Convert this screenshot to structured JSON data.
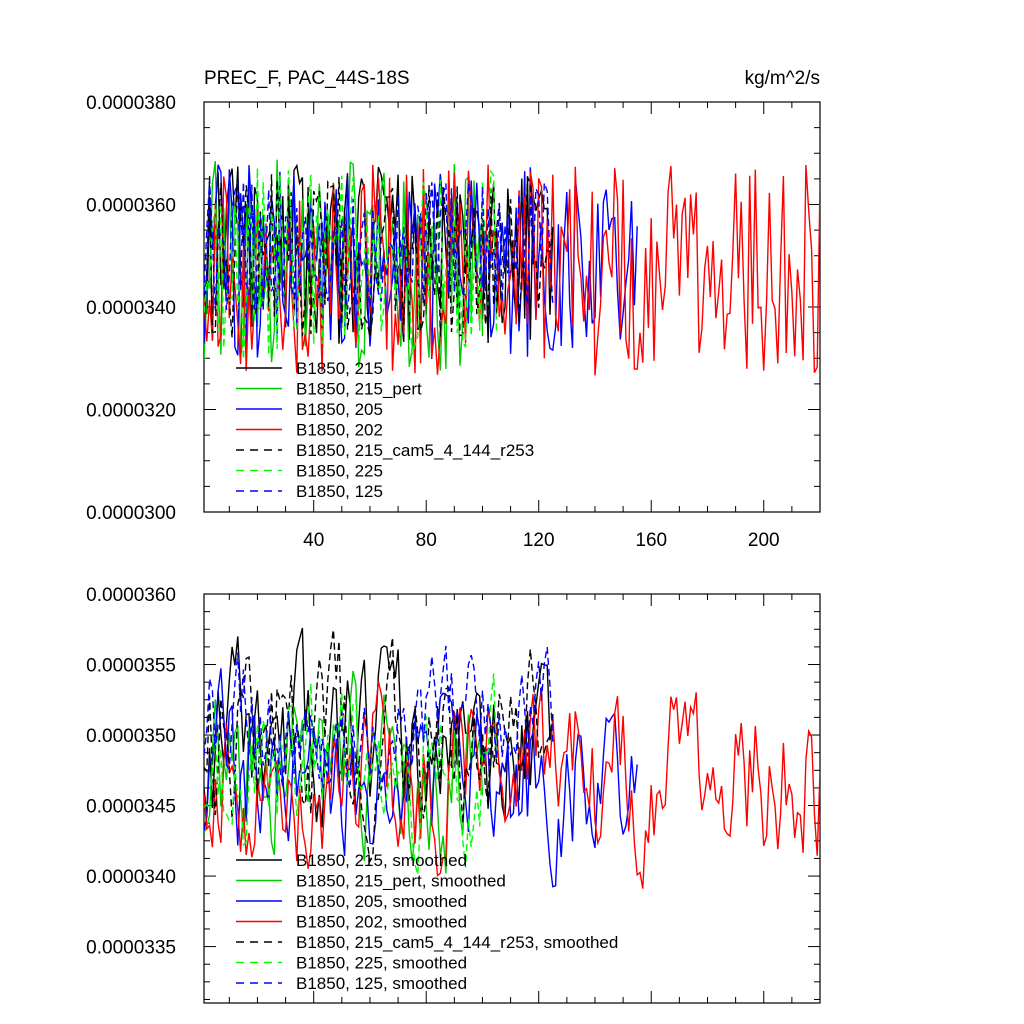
{
  "chart_data": [
    {
      "type": "line",
      "title": "PREC_F, PAC_44S-18S",
      "units": "kg/m^2/s",
      "xlim": [
        1,
        220
      ],
      "ylim": [
        3e-05,
        3.8e-05
      ],
      "xticks": [
        40,
        80,
        120,
        160,
        200
      ],
      "xtick_labels": [
        "40",
        "80",
        "120",
        "160",
        "200"
      ],
      "yticks": [
        3e-05,
        3.2e-05,
        3.4e-05,
        3.6e-05,
        3.8e-05
      ],
      "ytick_labels": [
        "0.0000300",
        "0.0000320",
        "0.0000340",
        "0.0000360",
        "0.0000380"
      ],
      "legend_position": "bottom-left",
      "series": [
        {
          "name": "B1850, 215",
          "color": "#000000",
          "dash": "solid",
          "length": 125,
          "seed": 11,
          "mean": 3.5e-05,
          "amp": 1.1e-06
        },
        {
          "name": "B1850, 215_pert",
          "color": "#00cc00",
          "dash": "solid",
          "length": 100,
          "seed": 23,
          "mean": 3.48e-05,
          "amp": 1.3e-06
        },
        {
          "name": "B1850, 205",
          "color": "#0000ff",
          "dash": "solid",
          "length": 155,
          "seed": 37,
          "mean": 3.49e-05,
          "amp": 1.2e-06
        },
        {
          "name": "B1850, 202",
          "color": "#ff0000",
          "dash": "solid",
          "length": 220,
          "seed": 41,
          "mean": 3.47e-05,
          "amp": 1.3e-06
        },
        {
          "name": "B1850, 215_cam5_4_144_r253",
          "color": "#000000",
          "dash": "dashed",
          "length": 125,
          "seed": 53,
          "mean": 3.5e-05,
          "amp": 1e-06
        },
        {
          "name": "B1850, 225",
          "color": "#00ff00",
          "dash": "dashed",
          "length": 105,
          "seed": 67,
          "mean": 3.48e-05,
          "amp": 1.2e-06
        },
        {
          "name": "B1850, 125",
          "color": "#0000ff",
          "dash": "dashed",
          "length": 125,
          "seed": 79,
          "mean": 3.52e-05,
          "amp": 8e-07
        }
      ]
    },
    {
      "type": "line",
      "title": "",
      "units": "",
      "xlim": [
        1,
        220
      ],
      "ylim": [
        3.31e-05,
        3.6e-05
      ],
      "xticks": [
        40,
        80,
        120,
        160,
        200
      ],
      "xtick_labels": [],
      "yticks": [
        3.35e-05,
        3.4e-05,
        3.45e-05,
        3.5e-05,
        3.55e-05,
        3.6e-05
      ],
      "ytick_labels": [
        "0.0000335",
        "0.0000340",
        "0.0000345",
        "0.0000350",
        "0.0000355",
        "0.0000360"
      ],
      "legend_position": "bottom-left",
      "series": [
        {
          "name": "B1850, 215, smoothed",
          "color": "#000000",
          "dash": "solid",
          "length": 125,
          "seed": 11,
          "mean": 3.49e-05,
          "amp": 4e-07
        },
        {
          "name": "B1850, 215_pert, smoothed",
          "color": "#00cc00",
          "dash": "solid",
          "length": 100,
          "seed": 23,
          "mean": 3.47e-05,
          "amp": 4e-07
        },
        {
          "name": "B1850, 205, smoothed",
          "color": "#0000ff",
          "dash": "solid",
          "length": 155,
          "seed": 37,
          "mean": 3.47e-05,
          "amp": 4e-07
        },
        {
          "name": "B1850, 202, smoothed",
          "color": "#ff0000",
          "dash": "solid",
          "length": 220,
          "seed": 41,
          "mean": 3.47e-05,
          "amp": 4e-07
        },
        {
          "name": "B1850, 215_cam5_4_144_r253, smoothed",
          "color": "#000000",
          "dash": "dashed",
          "length": 125,
          "seed": 53,
          "mean": 3.5e-05,
          "amp": 4e-07
        },
        {
          "name": "B1850, 225, smoothed",
          "color": "#00ff00",
          "dash": "dashed",
          "length": 105,
          "seed": 67,
          "mean": 3.47e-05,
          "amp": 4e-07
        },
        {
          "name": "B1850, 125, smoothed",
          "color": "#0000ff",
          "dash": "dashed",
          "length": 125,
          "seed": 79,
          "mean": 3.51e-05,
          "amp": 3e-07
        }
      ]
    }
  ]
}
